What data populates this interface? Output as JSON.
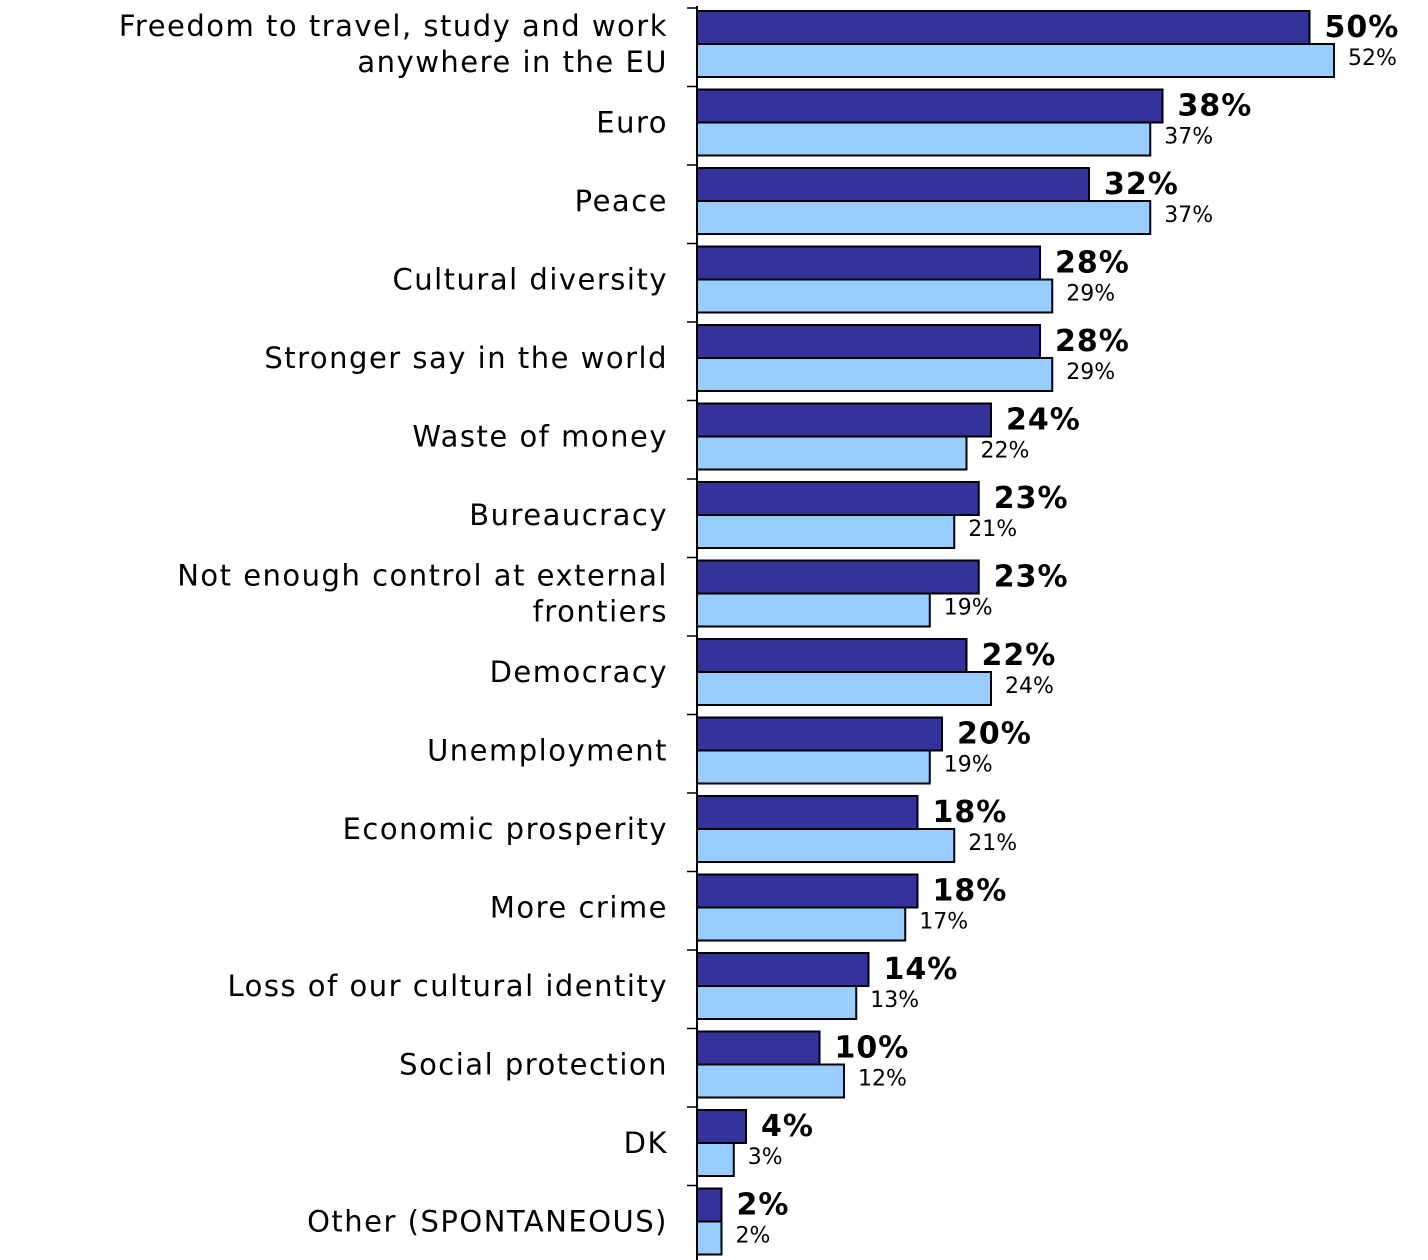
{
  "chart_data": {
    "type": "bar",
    "orientation": "horizontal",
    "title": "",
    "xlabel": "",
    "ylabel": "",
    "grid": false,
    "legend": "none",
    "categories": [
      [
        "Freedom to travel, study and work",
        "anywhere in the EU"
      ],
      [
        "Euro"
      ],
      [
        "Peace"
      ],
      [
        "Cultural diversity"
      ],
      [
        "Stronger say in the world"
      ],
      [
        "Waste of money"
      ],
      [
        "Bureaucracy"
      ],
      [
        "Not enough control at external",
        "frontiers"
      ],
      [
        "Democracy"
      ],
      [
        "Unemployment"
      ],
      [
        "Economic prosperity"
      ],
      [
        "More crime"
      ],
      [
        "Loss of our cultural identity"
      ],
      [
        "Social protection"
      ],
      [
        "DK"
      ],
      [
        "Other (SPONTANEOUS)"
      ]
    ],
    "series": [
      {
        "color": "#333399",
        "values": [
          50,
          38,
          32,
          28,
          28,
          24,
          23,
          23,
          22,
          20,
          18,
          18,
          14,
          10,
          4,
          2
        ],
        "labels": [
          "50%",
          "38%",
          "32%",
          "28%",
          "28%",
          "24%",
          "23%",
          "23%",
          "22%",
          "20%",
          "18%",
          "18%",
          "14%",
          "10%",
          "4%",
          "2%"
        ]
      },
      {
        "color": "#99ccff",
        "values": [
          52,
          37,
          37,
          29,
          29,
          22,
          21,
          19,
          24,
          19,
          21,
          17,
          13,
          12,
          3,
          2
        ],
        "labels": [
          "52%",
          "37%",
          "37%",
          "29%",
          "29%",
          "22%",
          "21%",
          "19%",
          "24%",
          "19%",
          "21%",
          "17%",
          "13%",
          "12%",
          "3%",
          "2%"
        ]
      }
    ]
  }
}
